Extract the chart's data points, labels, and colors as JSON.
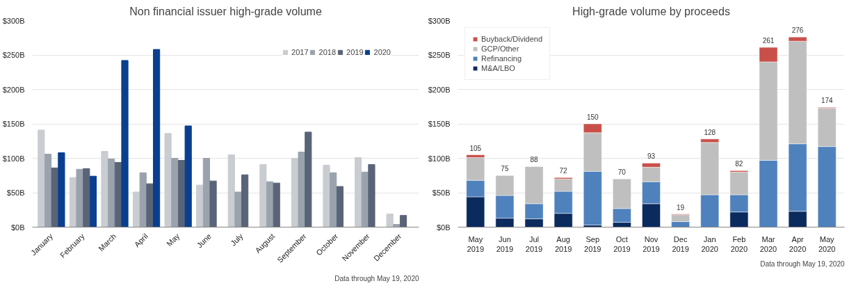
{
  "chart_data": [
    {
      "type": "bar",
      "title": "Non financial issuer high-grade volume",
      "categories": [
        "January",
        "February",
        "March",
        "April",
        "May",
        "June",
        "July",
        "August",
        "September",
        "October",
        "November",
        "December"
      ],
      "series": [
        {
          "name": "2017",
          "color": "#c9ccd1",
          "values": [
            141,
            72,
            110,
            51,
            136,
            61,
            105,
            91,
            100,
            90,
            101,
            19
          ]
        },
        {
          "name": "2018",
          "color": "#9aa3ad",
          "values": [
            106,
            84,
            99,
            79,
            100,
            100,
            51,
            66,
            109,
            79,
            80,
            4
          ]
        },
        {
          "name": "2019",
          "color": "#5a6478",
          "values": [
            86,
            85,
            94,
            63,
            97,
            67,
            76,
            64,
            138,
            59,
            91,
            17
          ]
        },
        {
          "name": "2020",
          "color": "#0a3f8f",
          "values": [
            108,
            74,
            242,
            258,
            147,
            null,
            null,
            null,
            null,
            null,
            null,
            null
          ]
        }
      ],
      "ylim": [
        0,
        300
      ],
      "yticks": [
        {
          "value": 0,
          "label": "$0B"
        },
        {
          "value": 50,
          "label": "$50B"
        },
        {
          "value": 100,
          "label": "$100B"
        },
        {
          "value": 150,
          "label": "$150B"
        },
        {
          "value": 200,
          "label": "$200B"
        },
        {
          "value": 250,
          "label": "$250B"
        },
        {
          "value": 300,
          "label": "$300B"
        }
      ],
      "grid": "y",
      "legend": "top right",
      "annotations": [
        "Data through May 19, 2020"
      ]
    },
    {
      "type": "bar",
      "title": "High-grade volume by proceeds",
      "stacked": true,
      "categories": [
        "May\n2019",
        "Jun\n2019",
        "Jul\n2019",
        "Aug\n2019",
        "Sep\n2019",
        "Oct\n2019",
        "Nov\n2019",
        "Dec\n2019",
        "Jan\n2020",
        "Feb\n2020",
        "Mar\n2020",
        "Apr\n2020",
        "May\n2020"
      ],
      "series": [
        {
          "name": "M&A/LBO",
          "color": "#0b2a5e",
          "values": [
            44,
            13,
            12,
            20,
            3,
            7,
            34,
            0,
            0,
            22,
            0,
            23,
            0
          ]
        },
        {
          "name": "Refinancing",
          "color": "#4f81bd",
          "values": [
            24,
            33,
            22,
            32,
            78,
            20,
            32,
            8,
            47,
            25,
            97,
            98,
            117
          ]
        },
        {
          "name": "GCP/Other",
          "color": "#bfbfbf",
          "values": [
            33,
            29,
            54,
            18,
            56,
            43,
            21,
            10,
            76,
            33,
            143,
            149,
            56
          ]
        },
        {
          "name": "Buyback/Dividend",
          "color": "#c9504a",
          "values": [
            4,
            0,
            0,
            2,
            13,
            0,
            6,
            1,
            5,
            2,
            21,
            6,
            1
          ]
        }
      ],
      "totals": [
        "105",
        "75",
        "88",
        "72",
        "150",
        "70",
        "93",
        "19",
        "128",
        "82",
        "261",
        "276",
        "174"
      ],
      "ylim": [
        0,
        300
      ],
      "yticks": [
        {
          "value": 0,
          "label": "$0B"
        },
        {
          "value": 50,
          "label": "$50B"
        },
        {
          "value": 100,
          "label": "$100B"
        },
        {
          "value": 150,
          "label": "$150B"
        },
        {
          "value": 200,
          "label": "$200B"
        },
        {
          "value": 250,
          "label": "$250B"
        },
        {
          "value": 300,
          "label": "$300B"
        }
      ],
      "grid": "y",
      "legend": "top left",
      "annotations": [
        "Data through May 19, 2020"
      ]
    }
  ]
}
